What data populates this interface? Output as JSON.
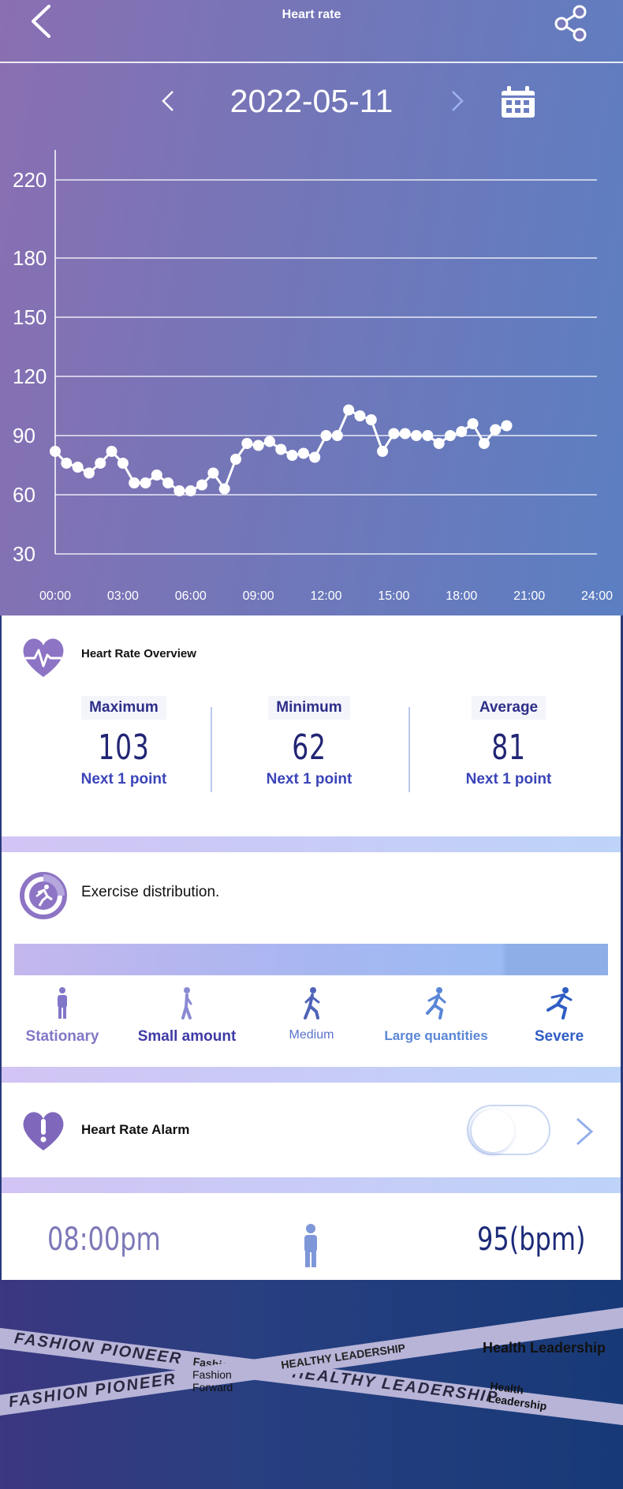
{
  "header": {
    "title": "Heart rate",
    "back_icon": "chevron-left-icon",
    "share_icon": "share-icon"
  },
  "date_nav": {
    "date": "2022-05-11",
    "calendar_icon": "calendar-icon"
  },
  "chart_data": {
    "type": "line",
    "title": "",
    "xlabel": "",
    "ylabel": "",
    "x_ticks": [
      "00:00",
      "03:00",
      "06:00",
      "09:00",
      "12:00",
      "15:00",
      "18:00",
      "21:00",
      "24:00"
    ],
    "y_ticks": [
      30,
      60,
      90,
      120,
      150,
      180,
      220
    ],
    "xlim": [
      0,
      24
    ],
    "grid": true,
    "series": [
      {
        "x": [
          0,
          0.5,
          1,
          1.5,
          2,
          2.5,
          3,
          3.5,
          4,
          4.5,
          5,
          5.5,
          6,
          6.5,
          7,
          7.5,
          8,
          8.5,
          9,
          9.5,
          10,
          10.5,
          11,
          11.5,
          12,
          12.5,
          13,
          13.5,
          14,
          14.5,
          15,
          15.5,
          16,
          16.5,
          17,
          17.5,
          18,
          18.5,
          19,
          19.5,
          20
        ],
        "y": [
          82,
          76,
          74,
          71,
          76,
          82,
          76,
          66,
          66,
          70,
          66,
          62,
          62,
          65,
          71,
          63,
          78,
          86,
          85,
          87,
          83,
          80,
          81,
          79,
          90,
          90,
          103,
          100,
          98,
          82,
          91,
          91,
          90,
          90,
          86,
          90,
          92,
          96,
          86,
          93,
          95
        ]
      }
    ]
  },
  "overview": {
    "title": "Heart Rate Overview",
    "stats": [
      {
        "label": "Maximum",
        "value": "103",
        "sub": "Next 1 point"
      },
      {
        "label": "Minimum",
        "value": "62",
        "sub": "Next 1 point"
      },
      {
        "label": "Average",
        "value": "81",
        "sub": "Next 1 point"
      }
    ]
  },
  "exercise": {
    "title": "Exercise distribution.",
    "levels": [
      {
        "label": "Stationary",
        "color": "#8177c8"
      },
      {
        "label": "Small amount",
        "color": "#3e3ba6"
      },
      {
        "label": "Medium",
        "color": "#5b73cf"
      },
      {
        "label": "Large quantities",
        "color": "#5a86d6"
      },
      {
        "label": "Severe",
        "color": "#2f5dc4"
      }
    ]
  },
  "alarm": {
    "title": "Heart Rate Alarm",
    "enabled": false
  },
  "footer": {
    "time": "08:00pm",
    "bpm": "95(bpm)"
  },
  "watermarks": {
    "fashion_pioneer": "FASHION PIONEER",
    "fashion_forward": "Fashion Forward",
    "healthy_leadership": "HEALTHY LEADERSHIP",
    "health_leadership": "Health Leadership"
  }
}
